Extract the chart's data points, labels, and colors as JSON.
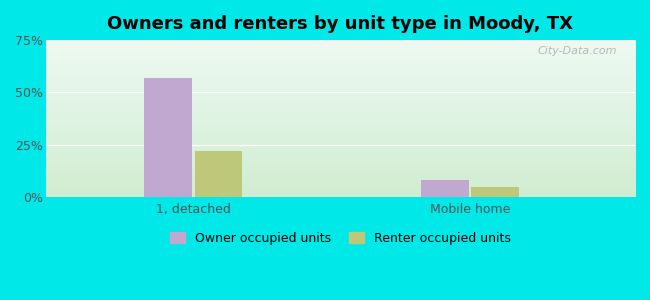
{
  "title": "Owners and renters by unit type in Moody, TX",
  "categories": [
    "1, detached",
    "Mobile home"
  ],
  "owner_values": [
    57,
    8
  ],
  "renter_values": [
    22,
    5
  ],
  "owner_color": "#c0a8d0",
  "renter_color": "#bec87a",
  "ylim": [
    0,
    75
  ],
  "yticks": [
    0,
    25,
    50,
    75
  ],
  "ytick_labels": [
    "0%",
    "25%",
    "50%",
    "75%"
  ],
  "background_outer": "#00e8e8",
  "legend_owner": "Owner occupied units",
  "legend_renter": "Renter occupied units",
  "bar_width": 0.08,
  "group_centers": [
    0.25,
    0.72
  ],
  "bar_gap": 0.005,
  "watermark": "City-Data.com",
  "title_fontsize": 13
}
